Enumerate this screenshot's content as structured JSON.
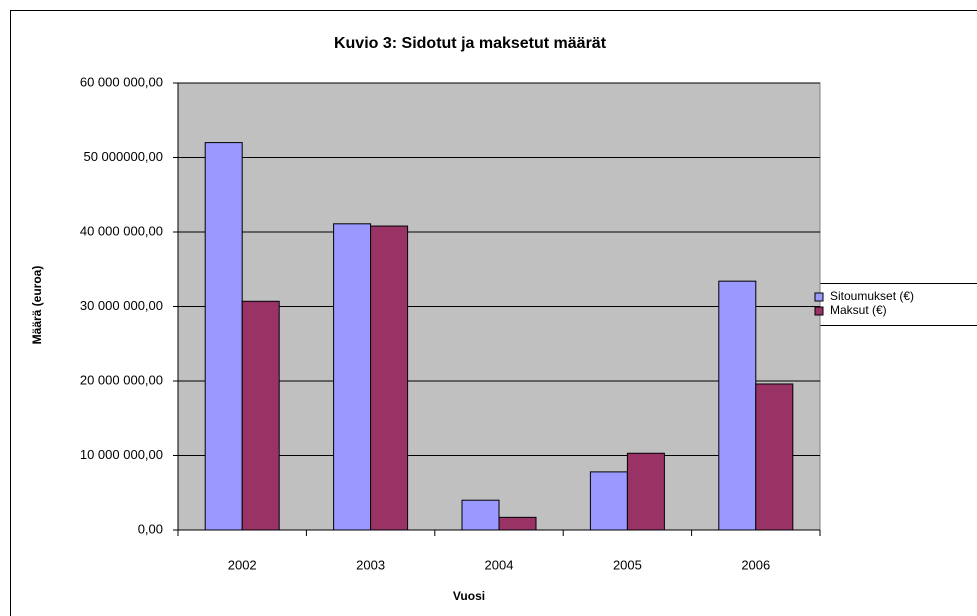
{
  "chart_data": {
    "type": "bar",
    "title": "Kuvio 3: Sidotut ja maksetut määrät",
    "xlabel": "Vuosi",
    "ylabel": "Määrä (euroa)",
    "categories": [
      "2002",
      "2003",
      "2004",
      "2005",
      "2006"
    ],
    "series": [
      {
        "name": "Sitoumukset (€)",
        "color": "#9999ff",
        "values": [
          52000000,
          41100000,
          4000000,
          7800000,
          33400000
        ]
      },
      {
        "name": "Maksut (€)",
        "color": "#993366",
        "values": [
          30700000,
          40800000,
          1700000,
          10300000,
          19600000
        ]
      }
    ],
    "ylim": [
      0,
      60000000
    ],
    "yticks": [
      {
        "value": 0,
        "label": "0,00"
      },
      {
        "value": 10000000,
        "label": "10 000 000,00"
      },
      {
        "value": 20000000,
        "label": "20 000 000,00"
      },
      {
        "value": 30000000,
        "label": "30 000 000,00"
      },
      {
        "value": 40000000,
        "label": "40 000 000,00"
      },
      {
        "value": 50000000,
        "label": "50 000000,00"
      },
      {
        "value": 60000000,
        "label": "60 000 000,00"
      }
    ],
    "grid": true,
    "legend": "right",
    "plot_background": "#c0c0c0"
  }
}
